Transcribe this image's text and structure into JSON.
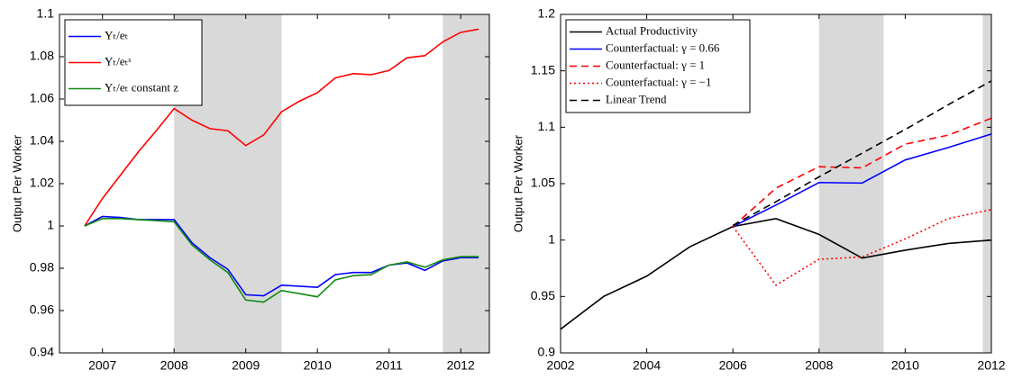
{
  "chart_data": [
    {
      "type": "line",
      "ylabel": "Output Per Worker",
      "x": [
        2006.75,
        2007,
        2007.25,
        2007.5,
        2007.75,
        2008,
        2008.25,
        2008.5,
        2008.75,
        2009,
        2009.25,
        2009.5,
        2009.75,
        2010,
        2010.25,
        2010.5,
        2010.75,
        2011,
        2011.25,
        2011.5,
        2011.75,
        2012,
        2012.25
      ],
      "xlim": [
        2006.4,
        2012.4
      ],
      "xticks": [
        2007,
        2008,
        2009,
        2010,
        2011,
        2012
      ],
      "ylim": [
        0.94,
        1.1
      ],
      "yticks": [
        0.94,
        0.96,
        0.98,
        1,
        1.02,
        1.04,
        1.06,
        1.08,
        1.1
      ],
      "shaded": [
        [
          2008,
          2009.5
        ],
        [
          2011.75,
          2012.4
        ]
      ],
      "series": [
        {
          "name": "Yₜ/eₜ",
          "color": "#0000ff",
          "dash": "solid",
          "values": [
            1.0,
            1.0045,
            1.004,
            1.003,
            1.003,
            1.003,
            0.992,
            0.985,
            0.9795,
            0.9675,
            0.967,
            0.972,
            0.9715,
            0.971,
            0.977,
            0.978,
            0.978,
            0.9815,
            0.9825,
            0.979,
            0.9835,
            0.985,
            0.985
          ]
        },
        {
          "name": "Yₜ/eₜˢ",
          "color": "#ff0000",
          "dash": "solid",
          "values": [
            1.0,
            1.013,
            1.024,
            1.035,
            1.045,
            1.0555,
            1.05,
            1.046,
            1.045,
            1.038,
            1.043,
            1.054,
            1.059,
            1.063,
            1.07,
            1.072,
            1.0715,
            1.0735,
            1.0795,
            1.0805,
            1.087,
            1.0915,
            1.093
          ]
        },
        {
          "name": "Yₜ/eₜ constant z",
          "color": "#108a10",
          "dash": "solid",
          "values": [
            1.0,
            1.0035,
            1.0035,
            1.003,
            1.0025,
            1.002,
            0.991,
            0.984,
            0.978,
            0.965,
            0.964,
            0.9695,
            0.968,
            0.9665,
            0.9745,
            0.9765,
            0.977,
            0.9815,
            0.983,
            0.9805,
            0.984,
            0.9855,
            0.9855
          ]
        }
      ]
    },
    {
      "type": "line",
      "ylabel": "Output Per Worker",
      "x": [
        2002,
        2003,
        2004,
        2005,
        2006,
        2007,
        2008,
        2009,
        2010,
        2011,
        2012
      ],
      "xlim": [
        2002,
        2012
      ],
      "xticks": [
        2002,
        2004,
        2006,
        2008,
        2010,
        2012
      ],
      "ylim": [
        0.9,
        1.2
      ],
      "yticks": [
        0.9,
        0.95,
        1,
        1.05,
        1.1,
        1.15,
        1.2
      ],
      "shaded": [
        [
          2008,
          2009.5
        ],
        [
          2011.8,
          2012
        ]
      ],
      "series": [
        {
          "name": "Actual Productivity",
          "color": "#000000",
          "dash": "solid",
          "values": [
            0.921,
            0.95,
            0.968,
            0.994,
            1.012,
            1.019,
            1.005,
            0.984,
            0.991,
            0.997,
            1.0
          ]
        },
        {
          "name": "Counterfactual: γ = 0.66",
          "color": "#0000ff",
          "dash": "solid",
          "values": [
            null,
            null,
            null,
            null,
            1.012,
            1.031,
            1.051,
            1.0505,
            1.071,
            1.082,
            1.094
          ]
        },
        {
          "name": "Counterfactual: γ = 1",
          "color": "#ff0000",
          "dash": "dashed",
          "values": [
            null,
            null,
            null,
            null,
            1.012,
            1.046,
            1.065,
            1.064,
            1.085,
            1.093,
            1.108
          ]
        },
        {
          "name": "Counterfactual: γ = −1",
          "color": "#ff0000",
          "dash": "dotted",
          "values": [
            null,
            null,
            null,
            null,
            1.012,
            0.96,
            0.983,
            0.985,
            1.001,
            1.019,
            1.027
          ]
        },
        {
          "name": "Linear Trend",
          "color": "#000000",
          "dash": "dashed",
          "values": [
            null,
            null,
            null,
            null,
            1.013,
            1.034,
            1.056,
            1.077,
            1.098,
            1.12,
            1.141
          ]
        }
      ]
    }
  ]
}
